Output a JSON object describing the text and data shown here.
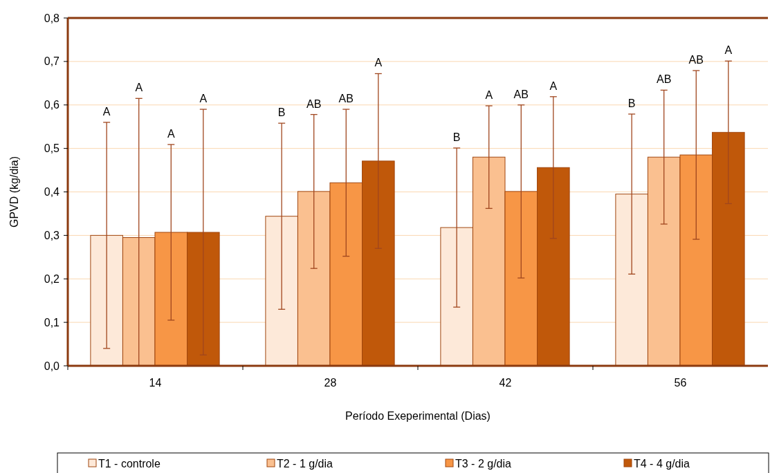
{
  "chart_data": {
    "type": "bar",
    "xlabel": "Período Exeperimental (Dias)",
    "ylabel": "GPVD (kg/dia)",
    "categories": [
      "14",
      "28",
      "42",
      "56"
    ],
    "series": [
      {
        "name": "T1 - controle",
        "color": "#fde9d9",
        "values": [
          0.3,
          0.344,
          0.318,
          0.395
        ],
        "errors": [
          0.26,
          0.214,
          0.183,
          0.184
        ]
      },
      {
        "name": "T2 - 1 g/dia",
        "color": "#fac090",
        "values": [
          0.295,
          0.401,
          0.48,
          0.48
        ],
        "errors": [
          [
            0,
            0.615
          ],
          0.177,
          0.118,
          0.154
        ]
      },
      {
        "name": "T3 - 2 g/dia",
        "color": "#f79646",
        "values": [
          0.307,
          0.421,
          0.401,
          0.485
        ],
        "errors": [
          0.202,
          0.169,
          0.199,
          0.194
        ]
      },
      {
        "name": "T4 - 4 g/dia",
        "color": "#c0580a",
        "values": [
          0.307,
          0.471,
          0.456,
          0.537
        ],
        "errors": [
          [
            0.025,
            0.59
          ],
          0.201,
          0.163,
          0.164
        ]
      }
    ],
    "ylim": [
      0,
      0.8
    ],
    "yticks": [
      {
        "value": 0,
        "label": "0,0"
      },
      {
        "value": 0.1,
        "label": "0,1"
      },
      {
        "value": 0.2,
        "label": "0,2"
      },
      {
        "value": 0.3,
        "label": "0,3"
      },
      {
        "value": 0.4,
        "label": "0,4"
      },
      {
        "value": 0.5,
        "label": "0,5"
      },
      {
        "value": 0.6,
        "label": "0,6"
      },
      {
        "value": 0.7,
        "label": "0,7"
      },
      {
        "value": 0.8,
        "label": "0,8"
      }
    ],
    "grid": "y",
    "legend": "bottom",
    "annotations": [
      "A",
      "A",
      "A",
      "A",
      "B",
      "AB",
      "AB",
      "A",
      "B",
      "A",
      "AB",
      "A",
      "B",
      "AB",
      "AB",
      "A"
    ]
  }
}
